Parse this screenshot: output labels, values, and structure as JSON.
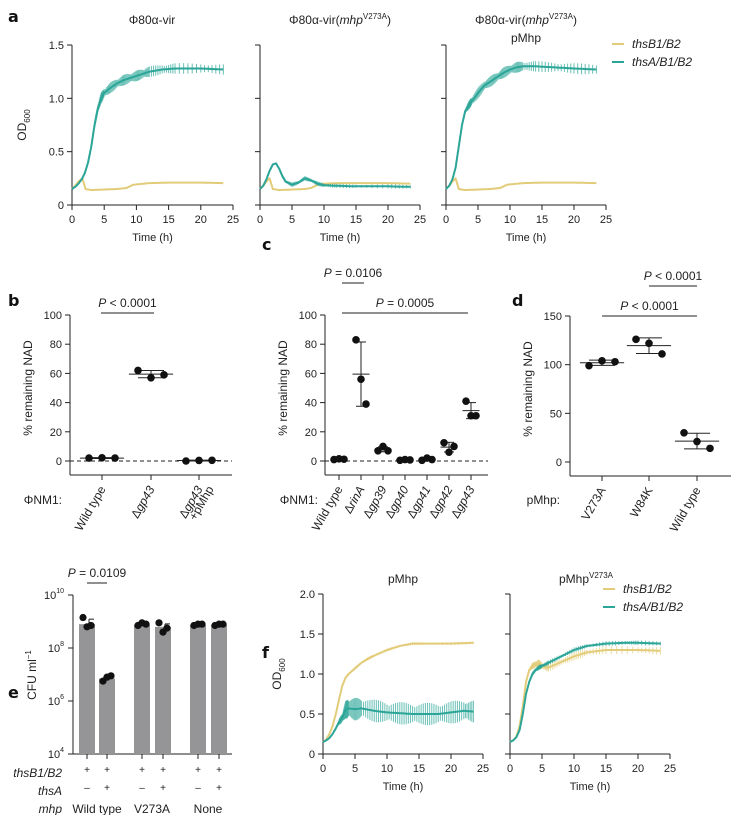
{
  "colors": {
    "thsB1B2": "#e3cc79",
    "thsAB1B2": "#2aa597",
    "bar": "#959597",
    "axis": "#222222"
  },
  "chart_data": [
    {
      "panel": "a",
      "id": "a1",
      "type": "line",
      "title": "Φ80α-vir",
      "xlabel": "Time (h)",
      "ylabel": "OD600",
      "xlim": [
        0,
        25
      ],
      "ylim": [
        0,
        1.5
      ],
      "xticks": [
        "0",
        "5",
        "10",
        "15",
        "20",
        "25"
      ],
      "yticks": [
        "0",
        "0.5",
        "1.0",
        "1.5"
      ],
      "series": [
        {
          "name": "thsB1/B2",
          "x": [
            0,
            0.5,
            1,
            1.6,
            2.1,
            3,
            5,
            7,
            8.5,
            9.5,
            12,
            15,
            20,
            23.5
          ],
          "y": [
            0.15,
            0.18,
            0.22,
            0.25,
            0.15,
            0.14,
            0.145,
            0.15,
            0.16,
            0.19,
            0.205,
            0.21,
            0.21,
            0.205
          ],
          "err": 0.005
        },
        {
          "name": "thsA/B1/B2",
          "x": [
            0,
            0.5,
            1,
            1.5,
            2,
            2.5,
            3,
            3.5,
            4,
            4.5,
            5,
            6,
            7,
            8,
            9,
            10,
            11,
            12,
            14,
            16,
            20,
            23.5
          ],
          "y": [
            0.15,
            0.17,
            0.2,
            0.24,
            0.3,
            0.4,
            0.55,
            0.75,
            0.9,
            1.0,
            1.05,
            1.1,
            1.14,
            1.17,
            1.19,
            1.21,
            1.23,
            1.25,
            1.27,
            1.28,
            1.28,
            1.27
          ],
          "err": 0.05
        }
      ]
    },
    {
      "panel": "a",
      "id": "a2",
      "type": "line",
      "title": "Φ80α-vir(mhp V273A)",
      "xlabel": "Time (h)",
      "ylabel": "",
      "xlim": [
        0,
        25
      ],
      "ylim": [
        0,
        1.5
      ],
      "xticks": [
        "0",
        "5",
        "10",
        "15",
        "20",
        "25"
      ],
      "yticks": [
        "",
        "",
        "",
        ""
      ],
      "series": [
        {
          "name": "thsB1/B2",
          "x": [
            0,
            0.5,
            1,
            1.5,
            2,
            3,
            5,
            7,
            8,
            9,
            10,
            12,
            15,
            20,
            23.5
          ],
          "y": [
            0.15,
            0.18,
            0.22,
            0.25,
            0.15,
            0.14,
            0.145,
            0.15,
            0.16,
            0.19,
            0.2,
            0.205,
            0.205,
            0.205,
            0.2
          ],
          "err": 0.005
        },
        {
          "name": "thsA/B1/B2",
          "x": [
            0,
            0.5,
            1,
            1.5,
            2,
            2.5,
            3,
            3.5,
            4,
            5,
            6,
            7,
            8,
            9,
            10,
            12,
            15,
            20,
            23.5
          ],
          "y": [
            0.15,
            0.18,
            0.24,
            0.32,
            0.38,
            0.39,
            0.34,
            0.27,
            0.22,
            0.19,
            0.21,
            0.25,
            0.23,
            0.2,
            0.185,
            0.18,
            0.175,
            0.175,
            0.17
          ],
          "err": 0.02
        }
      ]
    },
    {
      "panel": "a",
      "id": "a3",
      "type": "line",
      "title": "Φ80α-vir(mhp V273A) pMhp",
      "xlabel": "Time (h)",
      "ylabel": "",
      "xlim": [
        0,
        25
      ],
      "ylim": [
        0,
        1.5
      ],
      "xticks": [
        "0",
        "5",
        "10",
        "15",
        "20",
        "25"
      ],
      "yticks": [
        "",
        "",
        "",
        ""
      ],
      "series": [
        {
          "name": "thsB1/B2",
          "x": [
            0,
            0.5,
            1,
            1.5,
            2,
            3,
            5,
            7,
            8.5,
            9.5,
            12,
            15,
            20,
            23.5
          ],
          "y": [
            0.15,
            0.18,
            0.22,
            0.25,
            0.15,
            0.14,
            0.145,
            0.15,
            0.16,
            0.19,
            0.205,
            0.21,
            0.21,
            0.205
          ],
          "err": 0.005
        },
        {
          "name": "thsA/B1/B2",
          "x": [
            0,
            0.5,
            1,
            1.5,
            2,
            2.5,
            3,
            3.5,
            4,
            5,
            6,
            7,
            8,
            9,
            10,
            11,
            12,
            14,
            17,
            20,
            23.5
          ],
          "y": [
            0.15,
            0.18,
            0.24,
            0.35,
            0.55,
            0.75,
            0.88,
            0.93,
            0.97,
            1.05,
            1.12,
            1.16,
            1.2,
            1.24,
            1.27,
            1.29,
            1.3,
            1.3,
            1.29,
            1.28,
            1.27
          ],
          "err": 0.05
        }
      ]
    },
    {
      "panel": "b",
      "id": "b",
      "type": "scatter",
      "ylabel": "% remaining NAD",
      "ylim": [
        0,
        100
      ],
      "yticks": [
        "0",
        "20",
        "40",
        "60",
        "80",
        "100"
      ],
      "group_label": "ΦNM1:",
      "categories": [
        "Wild type",
        "Δgp43",
        "Δgp43 +pMhp"
      ],
      "points": [
        [
          2.0,
          2.2,
          2.0
        ],
        [
          62,
          57,
          59
        ],
        [
          0,
          0.4,
          0.5
        ]
      ],
      "mean": [
        2.0,
        59.5,
        0.3
      ],
      "sd": [
        0.3,
        2.5,
        0.3
      ],
      "reference_line": 0,
      "annotations": [
        {
          "text": "P < 0.0001",
          "from": 0,
          "to": 1
        }
      ]
    },
    {
      "panel": "c",
      "id": "c",
      "type": "scatter",
      "ylabel": "% remaining NAD",
      "ylim": [
        0,
        100
      ],
      "yticks": [
        "0",
        "20",
        "40",
        "60",
        "80",
        "100"
      ],
      "group_label": "ΦNM1:",
      "categories": [
        "Wild type",
        "ΔrinA",
        "Δgp39",
        "Δgp40",
        "Δgp41",
        "Δgp42",
        "Δgp43"
      ],
      "points": [
        [
          1.0,
          1.5,
          1.2
        ],
        [
          83,
          56,
          39
        ],
        [
          7,
          10,
          7
        ],
        [
          0.5,
          1.0,
          0.7
        ],
        [
          0.5,
          2.0,
          1.0
        ],
        [
          12.5,
          6,
          10
        ],
        [
          41,
          31,
          31
        ]
      ],
      "mean": [
        1.2,
        59.5,
        8,
        0.7,
        1.2,
        9.5,
        34.5
      ],
      "sd": [
        0.3,
        22,
        1.7,
        0.3,
        0.7,
        3.3,
        5.5
      ],
      "reference_line": 0,
      "annotations": [
        {
          "text": "P = 0.0106",
          "from": 0,
          "to": 1
        },
        {
          "text": "P = 0.0005",
          "from": 1,
          "to": 6
        }
      ]
    },
    {
      "panel": "d",
      "id": "d",
      "type": "scatter",
      "ylabel": "% remaining NAD",
      "ylim": [
        0,
        150
      ],
      "yticks": [
        "0",
        "50",
        "100",
        "150"
      ],
      "group_label": "pMhp:",
      "categories": [
        "V273A",
        "W84K",
        "Wild type"
      ],
      "points": [
        [
          99,
          104,
          103
        ],
        [
          126,
          122,
          111
        ],
        [
          30,
          21,
          14
        ]
      ],
      "mean": [
        102,
        119.5,
        21.5
      ],
      "sd": [
        2.7,
        8,
        8
      ],
      "annotations": [
        {
          "text": "P < 0.0001",
          "from": 1,
          "to": 2
        },
        {
          "text": "P < 0.0001",
          "from": 0,
          "to": 2
        }
      ]
    },
    {
      "panel": "e",
      "id": "e",
      "type": "bar",
      "ylabel": "CFU ml⁻¹",
      "yscale": "log",
      "ylim_log10": [
        4,
        10
      ],
      "yticks": [
        {
          "base": "10",
          "exp": "4"
        },
        {
          "base": "10",
          "exp": "6"
        },
        {
          "base": "10",
          "exp": "8"
        },
        {
          "base": "10",
          "exp": "10"
        }
      ],
      "row_labels": [
        "thsB1/B2",
        "thsA",
        "mhp"
      ],
      "thsB1B2": [
        "+",
        "+",
        "+",
        "+",
        "+",
        "+"
      ],
      "thsA": [
        "–",
        "+",
        "–",
        "+",
        "–",
        "+"
      ],
      "mhp_groups": [
        "Wild type",
        "V273A",
        "None"
      ],
      "values_log10": [
        8.9,
        6.85,
        8.88,
        8.8,
        8.87,
        8.88
      ],
      "points_log10": [
        [
          9.15,
          8.8,
          8.85
        ],
        [
          6.75,
          6.9,
          6.95
        ],
        [
          8.85,
          8.95,
          8.9
        ],
        [
          8.95,
          8.6,
          8.75
        ],
        [
          8.85,
          8.9,
          8.9
        ],
        [
          8.85,
          8.9,
          8.9
        ]
      ],
      "annotations": [
        {
          "text": "P = 0.0109",
          "from": 0,
          "to": 1
        }
      ]
    },
    {
      "panel": "f",
      "id": "f1",
      "type": "line",
      "title": "pMhp",
      "xlabel": "Time (h)",
      "ylabel": "OD600",
      "xlim": [
        0,
        25
      ],
      "ylim": [
        0,
        2.0
      ],
      "xticks": [
        "0",
        "5",
        "10",
        "15",
        "20",
        "25"
      ],
      "yticks": [
        "0",
        "0.5",
        "1.0",
        "1.5",
        "2.0"
      ],
      "series": [
        {
          "name": "thsB1/B2",
          "x": [
            0,
            0.5,
            1,
            1.5,
            2,
            2.5,
            3,
            3.5,
            4,
            5,
            6,
            7,
            8,
            10,
            12,
            14,
            16,
            20,
            23.5
          ],
          "y": [
            0.15,
            0.18,
            0.25,
            0.35,
            0.5,
            0.68,
            0.85,
            0.95,
            1.0,
            1.07,
            1.14,
            1.19,
            1.23,
            1.3,
            1.35,
            1.38,
            1.38,
            1.38,
            1.39
          ],
          "err": 0.02
        },
        {
          "name": "thsA/B1/B2",
          "x": [
            0,
            0.5,
            1,
            1.5,
            2,
            2.5,
            3,
            3.5,
            4,
            5,
            6,
            8,
            10,
            12,
            14,
            16,
            18,
            20,
            22,
            23.5
          ],
          "y": [
            0.15,
            0.17,
            0.2,
            0.25,
            0.32,
            0.4,
            0.45,
            0.55,
            0.57,
            0.56,
            0.57,
            0.54,
            0.52,
            0.51,
            0.5,
            0.5,
            0.5,
            0.52,
            0.54,
            0.53
          ],
          "err": 0.14
        }
      ]
    },
    {
      "panel": "f",
      "id": "f2",
      "type": "line",
      "title": "pMhp V273A",
      "xlabel": "Time (h)",
      "ylabel": "",
      "xlim": [
        0,
        25
      ],
      "ylim": [
        0,
        2.0
      ],
      "xticks": [
        "0",
        "5",
        "10",
        "15",
        "20",
        "25"
      ],
      "yticks": [
        "",
        "",
        "",
        "",
        ""
      ],
      "legend": {
        "position": "top-right",
        "entries": [
          "thsB1/B2",
          "thsA/B1/B2"
        ]
      },
      "series": [
        {
          "name": "thsB1/B2",
          "x": [
            0,
            0.5,
            1,
            1.5,
            2,
            2.5,
            3,
            3.5,
            4,
            4.5,
            5,
            6,
            8,
            10,
            12,
            15,
            20,
            23.5
          ],
          "y": [
            0.15,
            0.17,
            0.22,
            0.35,
            0.6,
            0.9,
            1.05,
            1.1,
            1.12,
            1.13,
            1.1,
            1.08,
            1.15,
            1.22,
            1.27,
            1.3,
            1.3,
            1.29
          ],
          "err": 0.05
        },
        {
          "name": "thsA/B1/B2",
          "x": [
            0,
            0.5,
            1,
            1.5,
            2,
            2.5,
            3,
            3.5,
            4,
            4.5,
            5,
            6,
            8,
            10,
            12,
            15,
            18,
            20,
            23.5
          ],
          "y": [
            0.15,
            0.17,
            0.21,
            0.3,
            0.5,
            0.75,
            0.9,
            1.0,
            1.05,
            1.08,
            1.1,
            1.14,
            1.22,
            1.3,
            1.35,
            1.38,
            1.39,
            1.39,
            1.38
          ],
          "err": 0.03
        }
      ]
    }
  ],
  "figure": {
    "panel_labels": [
      "a",
      "b",
      "c",
      "d",
      "e",
      "f"
    ],
    "a_titles": {
      "t1": "Φ80α-vir",
      "t2_main": "Φ80α-vir(",
      "t2_italic": "mhp",
      "t2_sup": "V273A",
      "t2_close": ")",
      "t3_line2": "pMhp"
    },
    "f_titles": {
      "t1": "pMhp",
      "t2_main": "pMhp",
      "t2_sup": "V273A"
    },
    "legend": {
      "entry1": "thsB1/B2",
      "entry2": "thsA/B1/B2"
    },
    "axis_labels": {
      "od_main": "OD",
      "od_sub": "600",
      "time": "Time (h)",
      "nad": "% remaining NAD",
      "cfu_main": "CFU ml",
      "cfu_sup": "−1"
    }
  }
}
